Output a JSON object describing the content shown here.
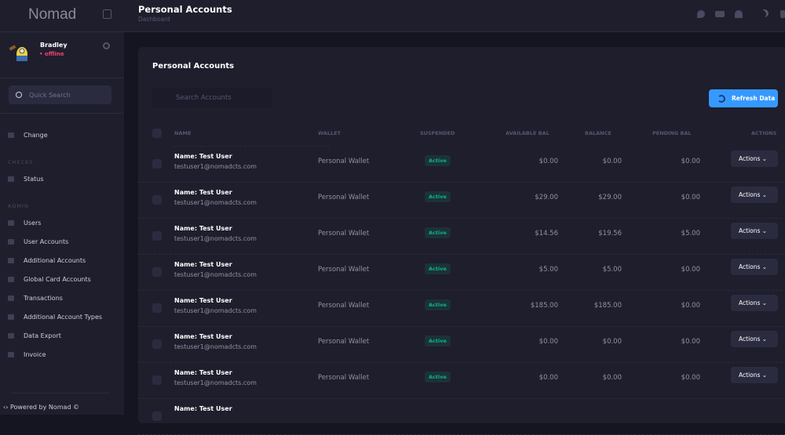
{
  "app": {
    "logo": "Nomad",
    "powered": "Powered by Nomad ©"
  },
  "user": {
    "name": "Bradley",
    "status": "• offline"
  },
  "sidebar": {
    "search_placeholder": "Quick Search",
    "top_items": [
      {
        "label": "Change",
        "icon": "chat-icon"
      }
    ],
    "checks_label": "CHECKS",
    "checks_items": [
      {
        "label": "Status",
        "icon": "pin-icon"
      }
    ],
    "admin_label": "ADMIN",
    "admin_items": [
      {
        "label": "Users",
        "icon": "users-icon"
      },
      {
        "label": "User Accounts",
        "icon": "wallet-icon"
      },
      {
        "label": "Additional Accounts",
        "icon": "triangle-icon"
      },
      {
        "label": "Global Card Accounts",
        "icon": "card-icon"
      },
      {
        "label": "Transactions",
        "icon": "transfer-icon"
      },
      {
        "label": "Additional Account Types",
        "icon": "wallet-icon"
      },
      {
        "label": "Data Export",
        "icon": "download-icon"
      },
      {
        "label": "Invoice",
        "icon": "file-icon"
      }
    ]
  },
  "header": {
    "title": "Personal Accounts",
    "breadcrumb": "Dashboard"
  },
  "card": {
    "title": "Personal Accounts",
    "search_placeholder": "Search Accounts",
    "refresh_label": "Refresh Data",
    "columns": [
      "NAME",
      "WALLET",
      "SUSPENDED",
      "AVAILABLE BAL",
      "BALANCE",
      "PENDING BAL",
      "ACTIONS"
    ],
    "rows": [
      {
        "name": "Name: Test User",
        "email": "testuser1@nomadcts.com",
        "wallet": "Personal Wallet",
        "status": "Active",
        "available": "$0.00",
        "balance": "$0.00",
        "pending": "$0.00",
        "action": "Actions"
      },
      {
        "name": "Name: Test User",
        "email": "testuser1@nomadcts.com",
        "wallet": "Personal Wallet",
        "status": "Active",
        "available": "$29.00",
        "balance": "$29.00",
        "pending": "$0.00",
        "action": "Actions"
      },
      {
        "name": "Name: Test User",
        "email": "testuser1@nomadcts.com",
        "wallet": "Personal Wallet",
        "status": "Active",
        "available": "$14.56",
        "balance": "$19.56",
        "pending": "$5.00",
        "action": "Actions"
      },
      {
        "name": "Name: Test User",
        "email": "testuser1@nomadcts.com",
        "wallet": "Personal Wallet",
        "status": "Active",
        "available": "$5.00",
        "balance": "$5.00",
        "pending": "$0.00",
        "action": "Actions"
      },
      {
        "name": "Name: Test User",
        "email": "testuser1@nomadcts.com",
        "wallet": "Personal Wallet",
        "status": "Active",
        "available": "$185.00",
        "balance": "$185.00",
        "pending": "$0.00",
        "action": "Actions"
      },
      {
        "name": "Name: Test User",
        "email": "testuser1@nomadcts.com",
        "wallet": "Personal Wallet",
        "status": "Active",
        "available": "$0.00",
        "balance": "$0.00",
        "pending": "$0.00",
        "action": "Actions"
      },
      {
        "name": "Name: Test User",
        "email": "testuser1@nomadcts.com",
        "wallet": "Personal Wallet",
        "status": "Active",
        "available": "$0.00",
        "balance": "$0.00",
        "pending": "$0.00",
        "action": "Actions"
      },
      {
        "name": "Name: Test User"
      }
    ]
  },
  "colors": {
    "accent": "#3699ff",
    "active": "#0bb783",
    "offline": "#f1416c"
  }
}
